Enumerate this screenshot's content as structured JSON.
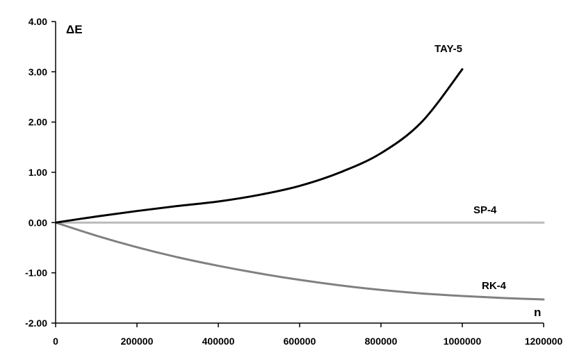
{
  "chart_data": {
    "type": "line",
    "title": "",
    "xlabel": "n",
    "ylabel": "ΔE",
    "xlim": [
      0,
      1200000
    ],
    "ylim": [
      -2,
      4
    ],
    "xticks": [
      "0",
      "200000",
      "400000",
      "600000",
      "800000",
      "1000000",
      "1200000"
    ],
    "yticks": [
      "-2.00",
      "-1.00",
      "0.00",
      "1.00",
      "2.00",
      "3.00",
      "4.00"
    ],
    "grid": false,
    "legend": "none",
    "series": [
      {
        "name": "TAY-5",
        "color": "#000000",
        "x": [
          0,
          100000,
          200000,
          300000,
          400000,
          500000,
          600000,
          700000,
          800000,
          900000,
          1000000
        ],
        "y": [
          0,
          0.12,
          0.23,
          0.33,
          0.42,
          0.55,
          0.73,
          1.0,
          1.38,
          2.0,
          3.05
        ]
      },
      {
        "name": "SP-4",
        "color": "#bbbbbb",
        "x": [
          0,
          1200000
        ],
        "y": [
          0,
          0
        ]
      },
      {
        "name": "RK-4",
        "color": "#808080",
        "x": [
          0,
          100000,
          200000,
          300000,
          400000,
          500000,
          600000,
          700000,
          800000,
          900000,
          1000000,
          1100000,
          1200000
        ],
        "y": [
          0,
          -0.26,
          -0.49,
          -0.69,
          -0.86,
          -1.01,
          -1.14,
          -1.25,
          -1.34,
          -1.41,
          -1.46,
          -1.5,
          -1.53
        ]
      }
    ]
  }
}
